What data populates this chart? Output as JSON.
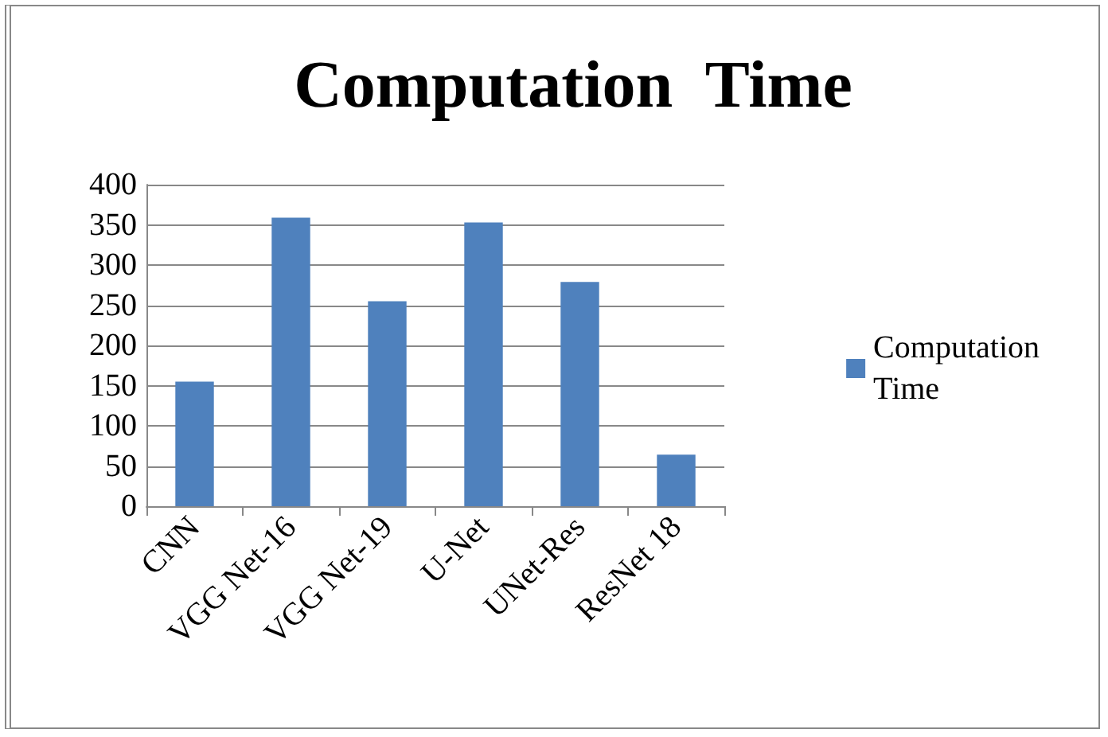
{
  "chart_data": {
    "type": "bar",
    "title": "Computation  Time",
    "categories": [
      "CNN",
      "VGG Net-16",
      "VGG Net-19",
      "U-Net",
      "UNet-Res",
      "ResNet 18"
    ],
    "series": [
      {
        "name": "Computation Time",
        "color": "#4f81bd",
        "values": [
          155,
          359,
          255,
          353,
          279,
          64
        ]
      }
    ],
    "ylim": [
      0,
      400
    ],
    "yticks": [
      0,
      50,
      100,
      150,
      200,
      250,
      300,
      350,
      400
    ],
    "grid": "y",
    "legend": "right"
  }
}
